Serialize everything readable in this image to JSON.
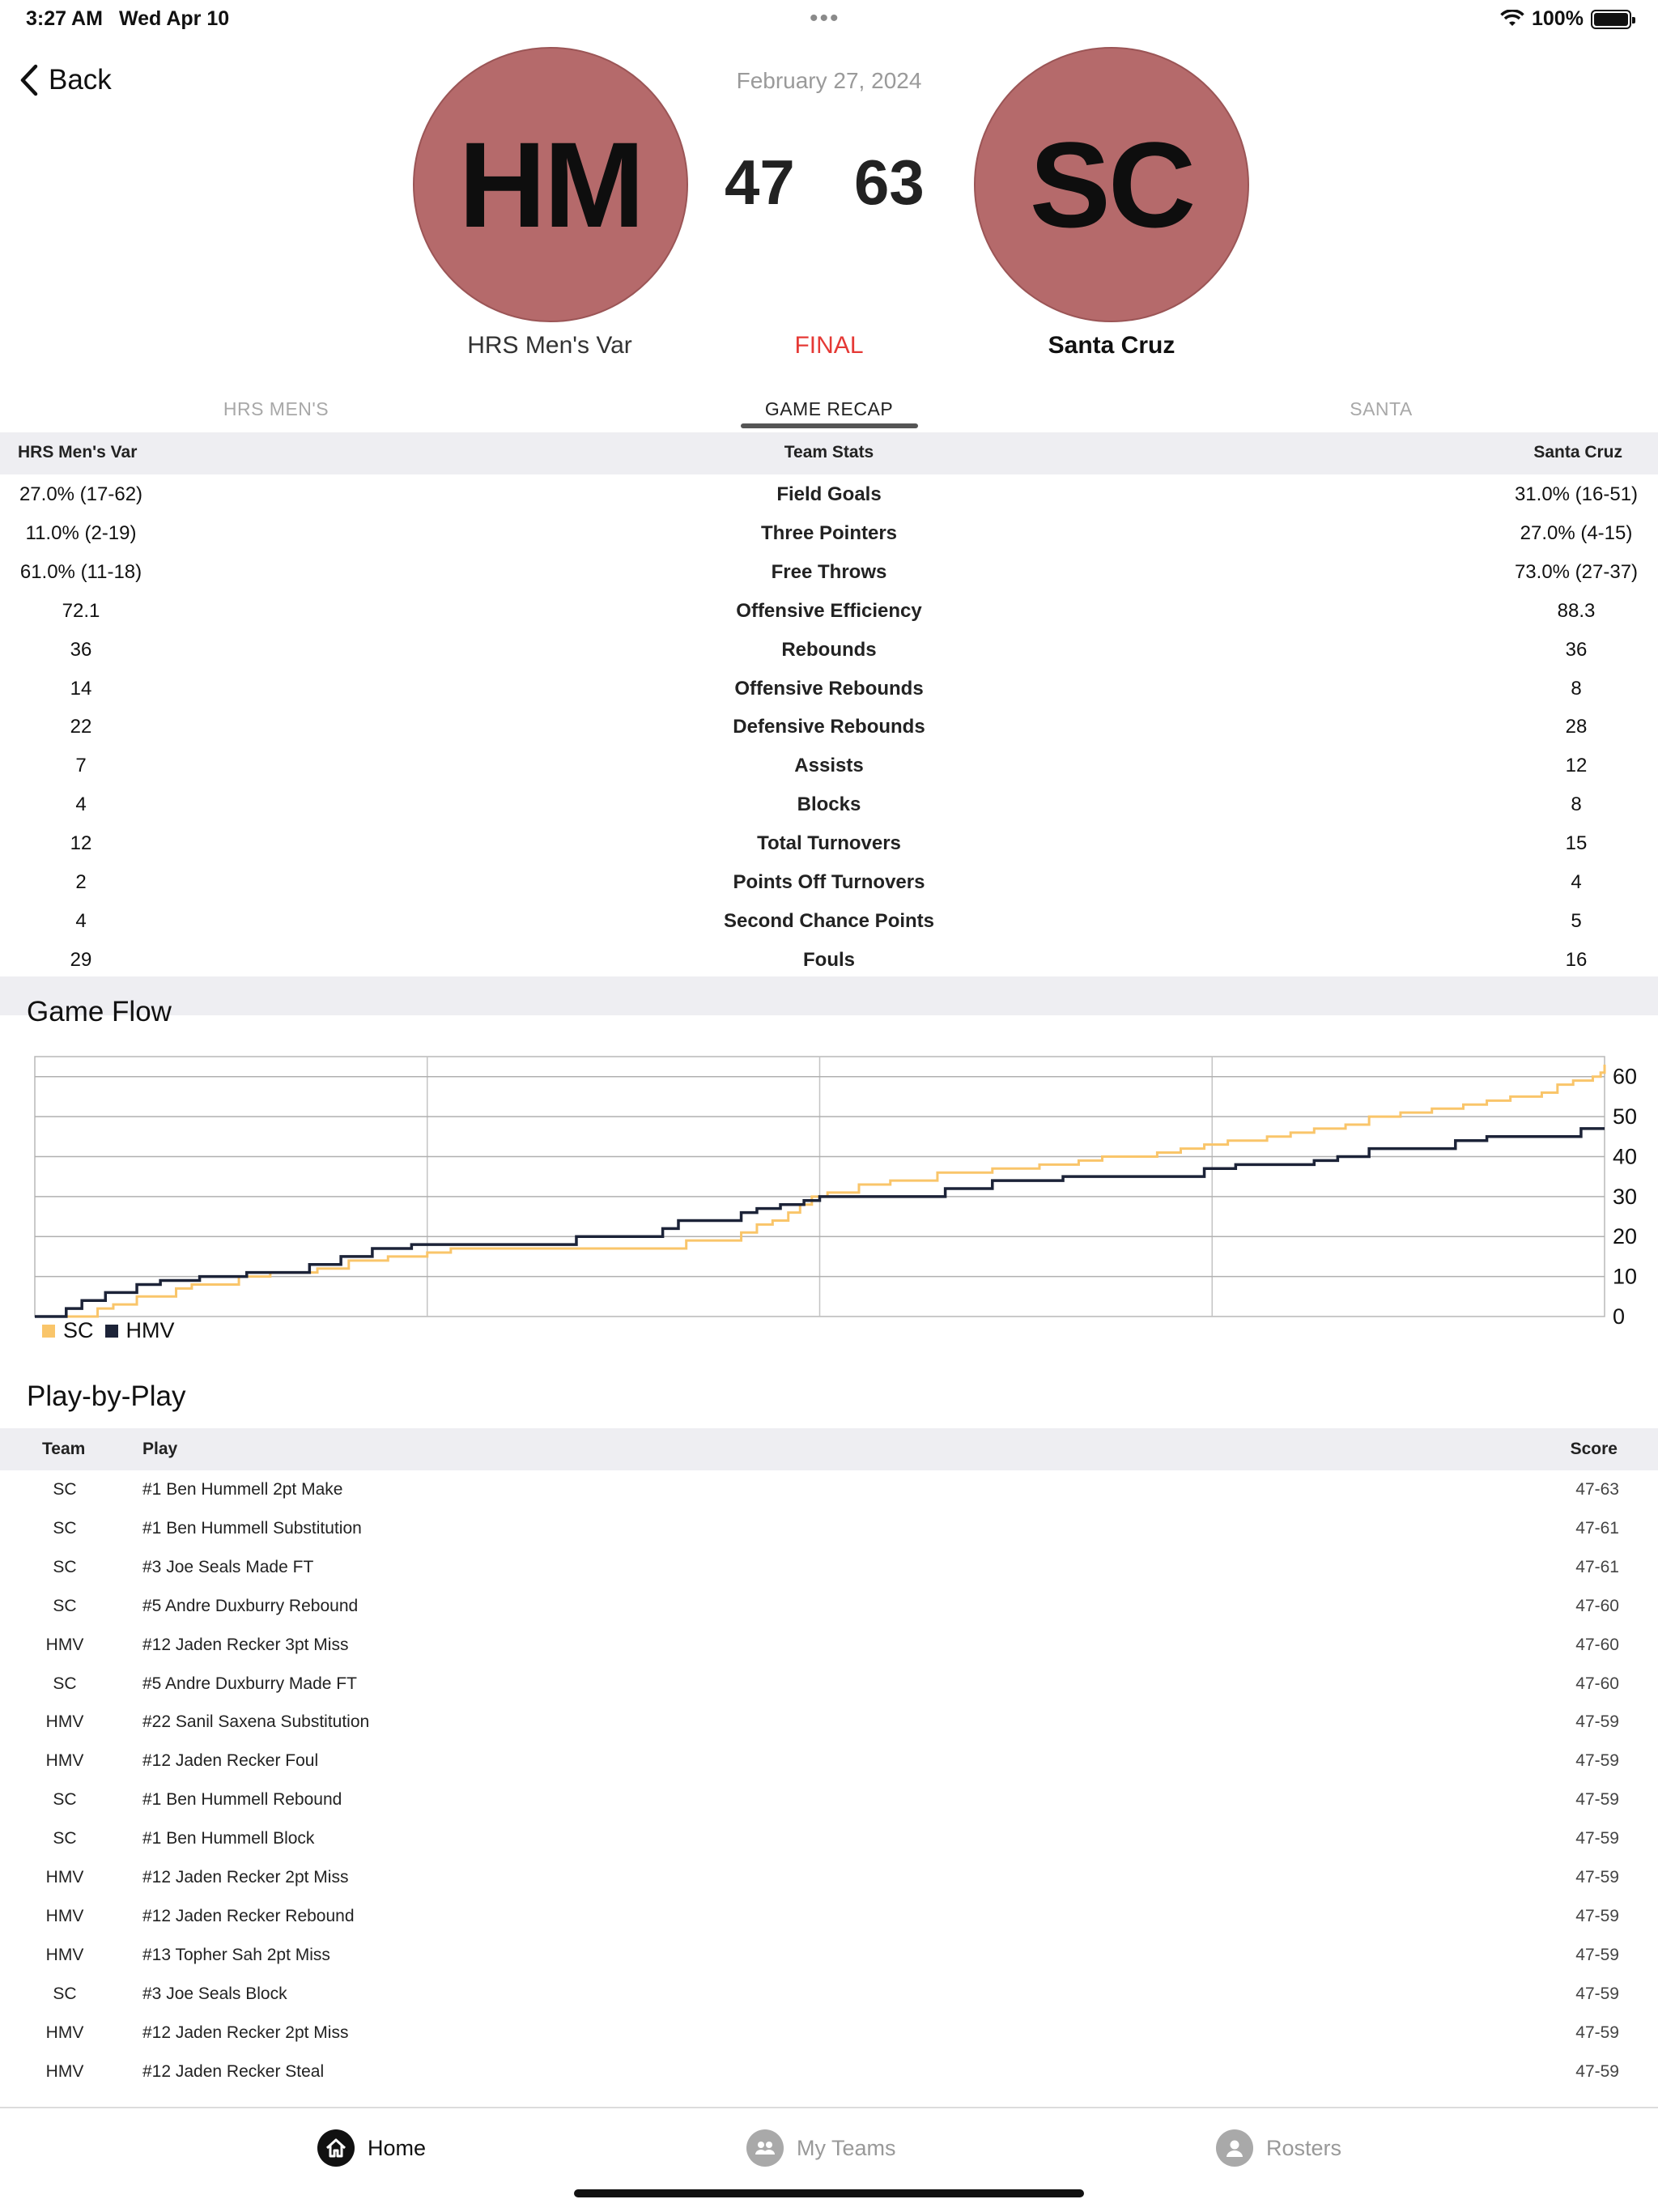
{
  "status_bar": {
    "time": "3:27 AM",
    "date": "Wed Apr 10",
    "battery": "100%"
  },
  "nav": {
    "back_label": "Back"
  },
  "game": {
    "date": "February 27, 2024",
    "home": {
      "abbr": "HM",
      "name": "HRS Men's Var",
      "score": "47"
    },
    "away": {
      "abbr": "SC",
      "name": "Santa Cruz",
      "score": "63"
    },
    "status": "FINAL"
  },
  "tabs": [
    {
      "label": "HRS MEN'S"
    },
    {
      "label": "GAME RECAP"
    },
    {
      "label": "SANTA"
    }
  ],
  "team_stats": {
    "header": {
      "home": "HRS Men's Var",
      "center": "Team Stats",
      "away": "Santa Cruz"
    },
    "rows": [
      {
        "home": "27.0% (17-62)",
        "stat": "Field Goals",
        "away": "31.0% (16-51)"
      },
      {
        "home": "11.0% (2-19)",
        "stat": "Three Pointers",
        "away": "27.0% (4-15)"
      },
      {
        "home": "61.0% (11-18)",
        "stat": "Free Throws",
        "away": "73.0% (27-37)"
      },
      {
        "home": "72.1",
        "stat": "Offensive Efficiency",
        "away": "88.3"
      },
      {
        "home": "36",
        "stat": "Rebounds",
        "away": "36"
      },
      {
        "home": "14",
        "stat": "Offensive Rebounds",
        "away": "8"
      },
      {
        "home": "22",
        "stat": "Defensive Rebounds",
        "away": "28"
      },
      {
        "home": "7",
        "stat": "Assists",
        "away": "12"
      },
      {
        "home": "4",
        "stat": "Blocks",
        "away": "8"
      },
      {
        "home": "12",
        "stat": "Total Turnovers",
        "away": "15"
      },
      {
        "home": "2",
        "stat": "Points Off Turnovers",
        "away": "4"
      },
      {
        "home": "4",
        "stat": "Second Chance Points",
        "away": "5"
      },
      {
        "home": "29",
        "stat": "Fouls",
        "away": "16"
      }
    ]
  },
  "game_flow": {
    "title": "Game Flow"
  },
  "chart_data": {
    "type": "line",
    "title": "Game Flow",
    "xlabel": "",
    "ylabel": "",
    "ylim": [
      0,
      65
    ],
    "yticks": [
      0,
      10,
      20,
      30,
      40,
      50,
      60
    ],
    "x_periods": 4,
    "grid": true,
    "legend_position": "bottom-left",
    "series": [
      {
        "name": "SC",
        "color": "#f9c56a",
        "x": [
          0,
          0.14,
          0.16,
          0.2,
          0.26,
          0.36,
          0.4,
          0.52,
          0.6,
          0.64,
          0.72,
          0.8,
          0.9,
          1.0,
          1.06,
          1.2,
          1.34,
          1.5,
          1.66,
          1.8,
          1.84,
          1.88,
          1.92,
          1.95,
          1.98,
          2.02,
          2.1,
          2.18,
          2.3,
          2.44,
          2.56,
          2.66,
          2.72,
          2.8,
          2.86,
          2.92,
          2.98,
          3.04,
          3.14,
          3.2,
          3.26,
          3.34,
          3.4,
          3.48,
          3.56,
          3.64,
          3.7,
          3.76,
          3.84,
          3.88,
          3.92,
          3.97,
          3.99,
          4.0
        ],
        "y": [
          0,
          0,
          2,
          3,
          5,
          7,
          8,
          10,
          11,
          11,
          12,
          14,
          15,
          16,
          17,
          17,
          17,
          17,
          19,
          21,
          23,
          24,
          26,
          28,
          30,
          31,
          33,
          34,
          36,
          37,
          38,
          39,
          40,
          40,
          41,
          42,
          43,
          44,
          45,
          46,
          47,
          48,
          50,
          51,
          52,
          53,
          54,
          55,
          56,
          58,
          59,
          60,
          61,
          63
        ]
      },
      {
        "name": "HMV",
        "color": "#1c2338",
        "x": [
          0,
          0.08,
          0.12,
          0.18,
          0.26,
          0.32,
          0.42,
          0.54,
          0.7,
          0.78,
          0.86,
          0.96,
          1.2,
          1.38,
          1.6,
          1.64,
          1.72,
          1.8,
          1.84,
          1.9,
          1.96,
          2.0,
          2.18,
          2.32,
          2.44,
          2.62,
          2.8,
          2.98,
          3.06,
          3.16,
          3.26,
          3.32,
          3.4,
          3.46,
          3.62,
          3.7,
          3.78,
          3.94,
          4.0
        ],
        "y": [
          0,
          2,
          4,
          6,
          8,
          9,
          10,
          11,
          13,
          15,
          17,
          18,
          18,
          20,
          22,
          24,
          24,
          26,
          27,
          28,
          29,
          30,
          30,
          32,
          34,
          35,
          35,
          37,
          38,
          38,
          39,
          40,
          42,
          42,
          44,
          45,
          45,
          47,
          47
        ]
      }
    ]
  },
  "play_by_play": {
    "title": "Play-by-Play",
    "header": {
      "team": "Team",
      "play": "Play",
      "score": "Score"
    },
    "rows": [
      {
        "team": "SC",
        "play": "#1 Ben Hummell 2pt Make",
        "score": "47-63"
      },
      {
        "team": "SC",
        "play": "#1 Ben Hummell Substitution",
        "score": "47-61"
      },
      {
        "team": "SC",
        "play": "#3 Joe Seals Made FT",
        "score": "47-61"
      },
      {
        "team": "SC",
        "play": "#5 Andre Duxburry Rebound",
        "score": "47-60"
      },
      {
        "team": "HMV",
        "play": "#12 Jaden Recker 3pt Miss",
        "score": "47-60"
      },
      {
        "team": "SC",
        "play": "#5 Andre Duxburry Made FT",
        "score": "47-60"
      },
      {
        "team": "HMV",
        "play": "#22 Sanil Saxena Substitution",
        "score": "47-59"
      },
      {
        "team": "HMV",
        "play": "#12 Jaden Recker Foul",
        "score": "47-59"
      },
      {
        "team": "SC",
        "play": "#1 Ben Hummell Rebound",
        "score": "47-59"
      },
      {
        "team": "SC",
        "play": "#1 Ben Hummell Block",
        "score": "47-59"
      },
      {
        "team": "HMV",
        "play": "#12 Jaden Recker 2pt Miss",
        "score": "47-59"
      },
      {
        "team": "HMV",
        "play": "#12 Jaden Recker Rebound",
        "score": "47-59"
      },
      {
        "team": "HMV",
        "play": "#13 Topher Sah 2pt Miss",
        "score": "47-59"
      },
      {
        "team": "SC",
        "play": "#3 Joe Seals Block",
        "score": "47-59"
      },
      {
        "team": "HMV",
        "play": "#12 Jaden Recker 2pt Miss",
        "score": "47-59"
      },
      {
        "team": "HMV",
        "play": "#12 Jaden Recker Steal",
        "score": "47-59"
      }
    ]
  },
  "tab_bar": {
    "items": [
      {
        "label": "Home",
        "icon": "house-icon"
      },
      {
        "label": "My Teams",
        "icon": "people-icon"
      },
      {
        "label": "Rosters",
        "icon": "person-icon"
      }
    ]
  },
  "colors": {
    "team_circle": "#b56a6b",
    "final": "#e53935",
    "sc_line": "#f9c56a",
    "hmv_line": "#1c2338"
  }
}
